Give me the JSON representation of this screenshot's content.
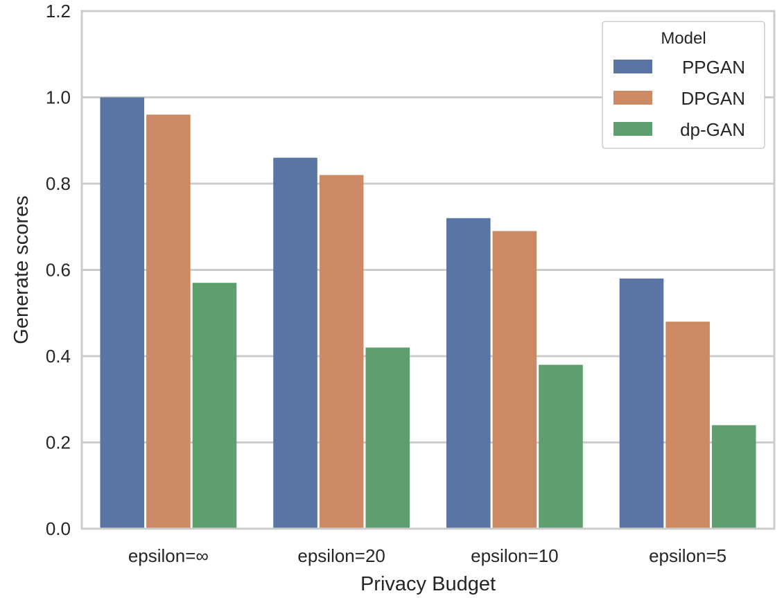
{
  "chart_data": {
    "type": "bar",
    "title": "",
    "xlabel": "Privacy Budget",
    "ylabel": "Generate scores",
    "categories": [
      "epsilon=∞",
      "epsilon=20",
      "epsilon=10",
      "epsilon=5"
    ],
    "series": [
      {
        "name": "PPGAN",
        "color": "#5975a4",
        "values": [
          1.0,
          0.86,
          0.72,
          0.58
        ]
      },
      {
        "name": "DPGAN",
        "color": "#cc8963",
        "values": [
          0.96,
          0.82,
          0.69,
          0.48
        ]
      },
      {
        "name": "dp-GAN",
        "color": "#5f9e6e",
        "values": [
          0.57,
          0.42,
          0.38,
          0.24
        ]
      }
    ],
    "ylim": [
      0,
      1.2
    ],
    "yticks": [
      "0.0",
      "0.2",
      "0.4",
      "0.6",
      "0.8",
      "1.0",
      "1.2"
    ],
    "grid": true,
    "legend": {
      "title": "Model",
      "placement": "top-right"
    }
  }
}
